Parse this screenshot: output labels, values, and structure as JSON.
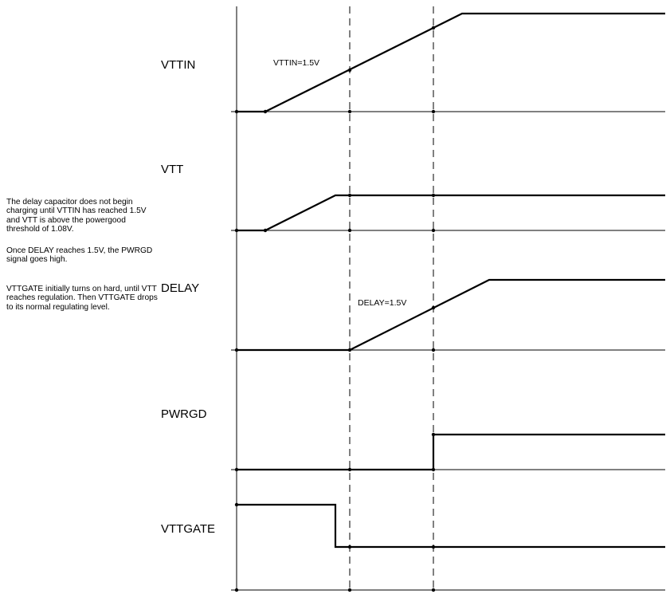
{
  "signals": [
    {
      "id": "vttin",
      "label": "VTTIN"
    },
    {
      "id": "vtt",
      "label": "VTT"
    },
    {
      "id": "delay",
      "label": "DELAY"
    },
    {
      "id": "pwrgd",
      "label": "PWRGD"
    },
    {
      "id": "vttgate",
      "label": "VTTGATE"
    }
  ],
  "annotations": {
    "vttin_threshold": "VTTIN=1.5V",
    "delay_threshold": "DELAY=1.5V"
  },
  "notes": [
    "The delay capacitor does not begin charging until VTTIN has reached 1.5V and VTT is above the powergood threshold of 1.08V.",
    "Once DELAY reaches 1.5V, the PWRGD signal goes high.",
    "VTTGATE initially turns on hard, until VTT reaches regulation.  Then VTTGATE drops to its normal regulating level."
  ]
}
